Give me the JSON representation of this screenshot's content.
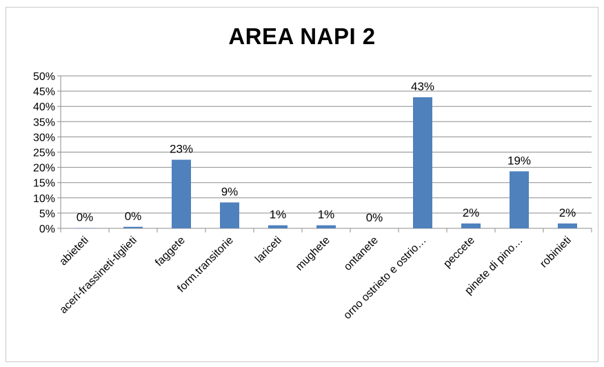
{
  "chart_data": {
    "type": "bar",
    "title": "AREA NAPI 2",
    "categories": [
      "abieteti",
      "aceri-frassineti-tiglieti",
      "faggete",
      "form.transitorie",
      "lariceti",
      "mughete",
      "ontanete",
      "orno ostrieto e ostrio…",
      "peccete",
      "pinete di pino…",
      "robinieti"
    ],
    "values": [
      0.1,
      0.5,
      22.5,
      8.5,
      1.0,
      1.0,
      0.0,
      43.0,
      1.6,
      18.7,
      1.6
    ],
    "data_labels": [
      "0%",
      "0%",
      "23%",
      "9%",
      "1%",
      "1%",
      "0%",
      "43%",
      "2%",
      "19%",
      "2%"
    ],
    "y_ticks": [
      "0%",
      "5%",
      "10%",
      "15%",
      "20%",
      "25%",
      "30%",
      "35%",
      "40%",
      "45%",
      "50%"
    ],
    "ylim": [
      0,
      50
    ],
    "grid": true,
    "legend": "none",
    "xlabel": "",
    "ylabel": "",
    "bar_color": "#4f81bd"
  }
}
